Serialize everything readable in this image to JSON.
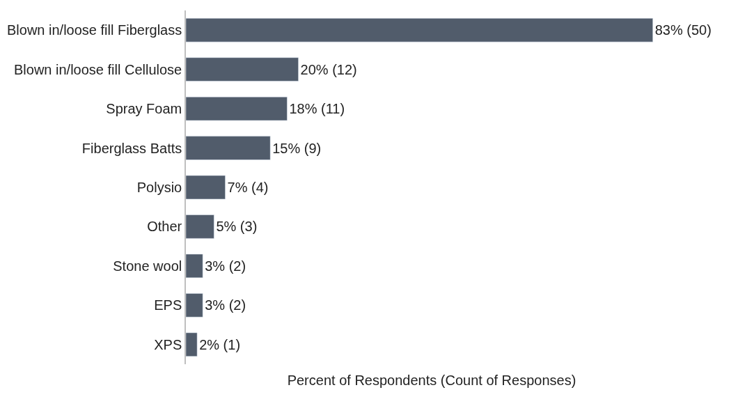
{
  "chart_data": {
    "type": "bar",
    "orientation": "horizontal",
    "xlabel": "Percent of Respondents (Count of Responses)",
    "categories": [
      "Blown in/loose fill Fiberglass",
      "Blown in/loose fill Cellulose",
      "Spray Foam",
      "Fiberglass Batts",
      "Polysio",
      "Other",
      "Stone wool",
      "EPS",
      "XPS"
    ],
    "values": [
      83,
      20,
      18,
      15,
      7,
      5,
      3,
      3,
      2
    ],
    "value_labels": [
      "83% (50)",
      "20% (12)",
      "18% (11)",
      "15% (9)",
      "7% (4)",
      "5% (3)",
      "3% (2)",
      "3% (2)",
      "2% (1)"
    ],
    "color": "#515c6b",
    "tick_labels": "y",
    "legend": false
  }
}
